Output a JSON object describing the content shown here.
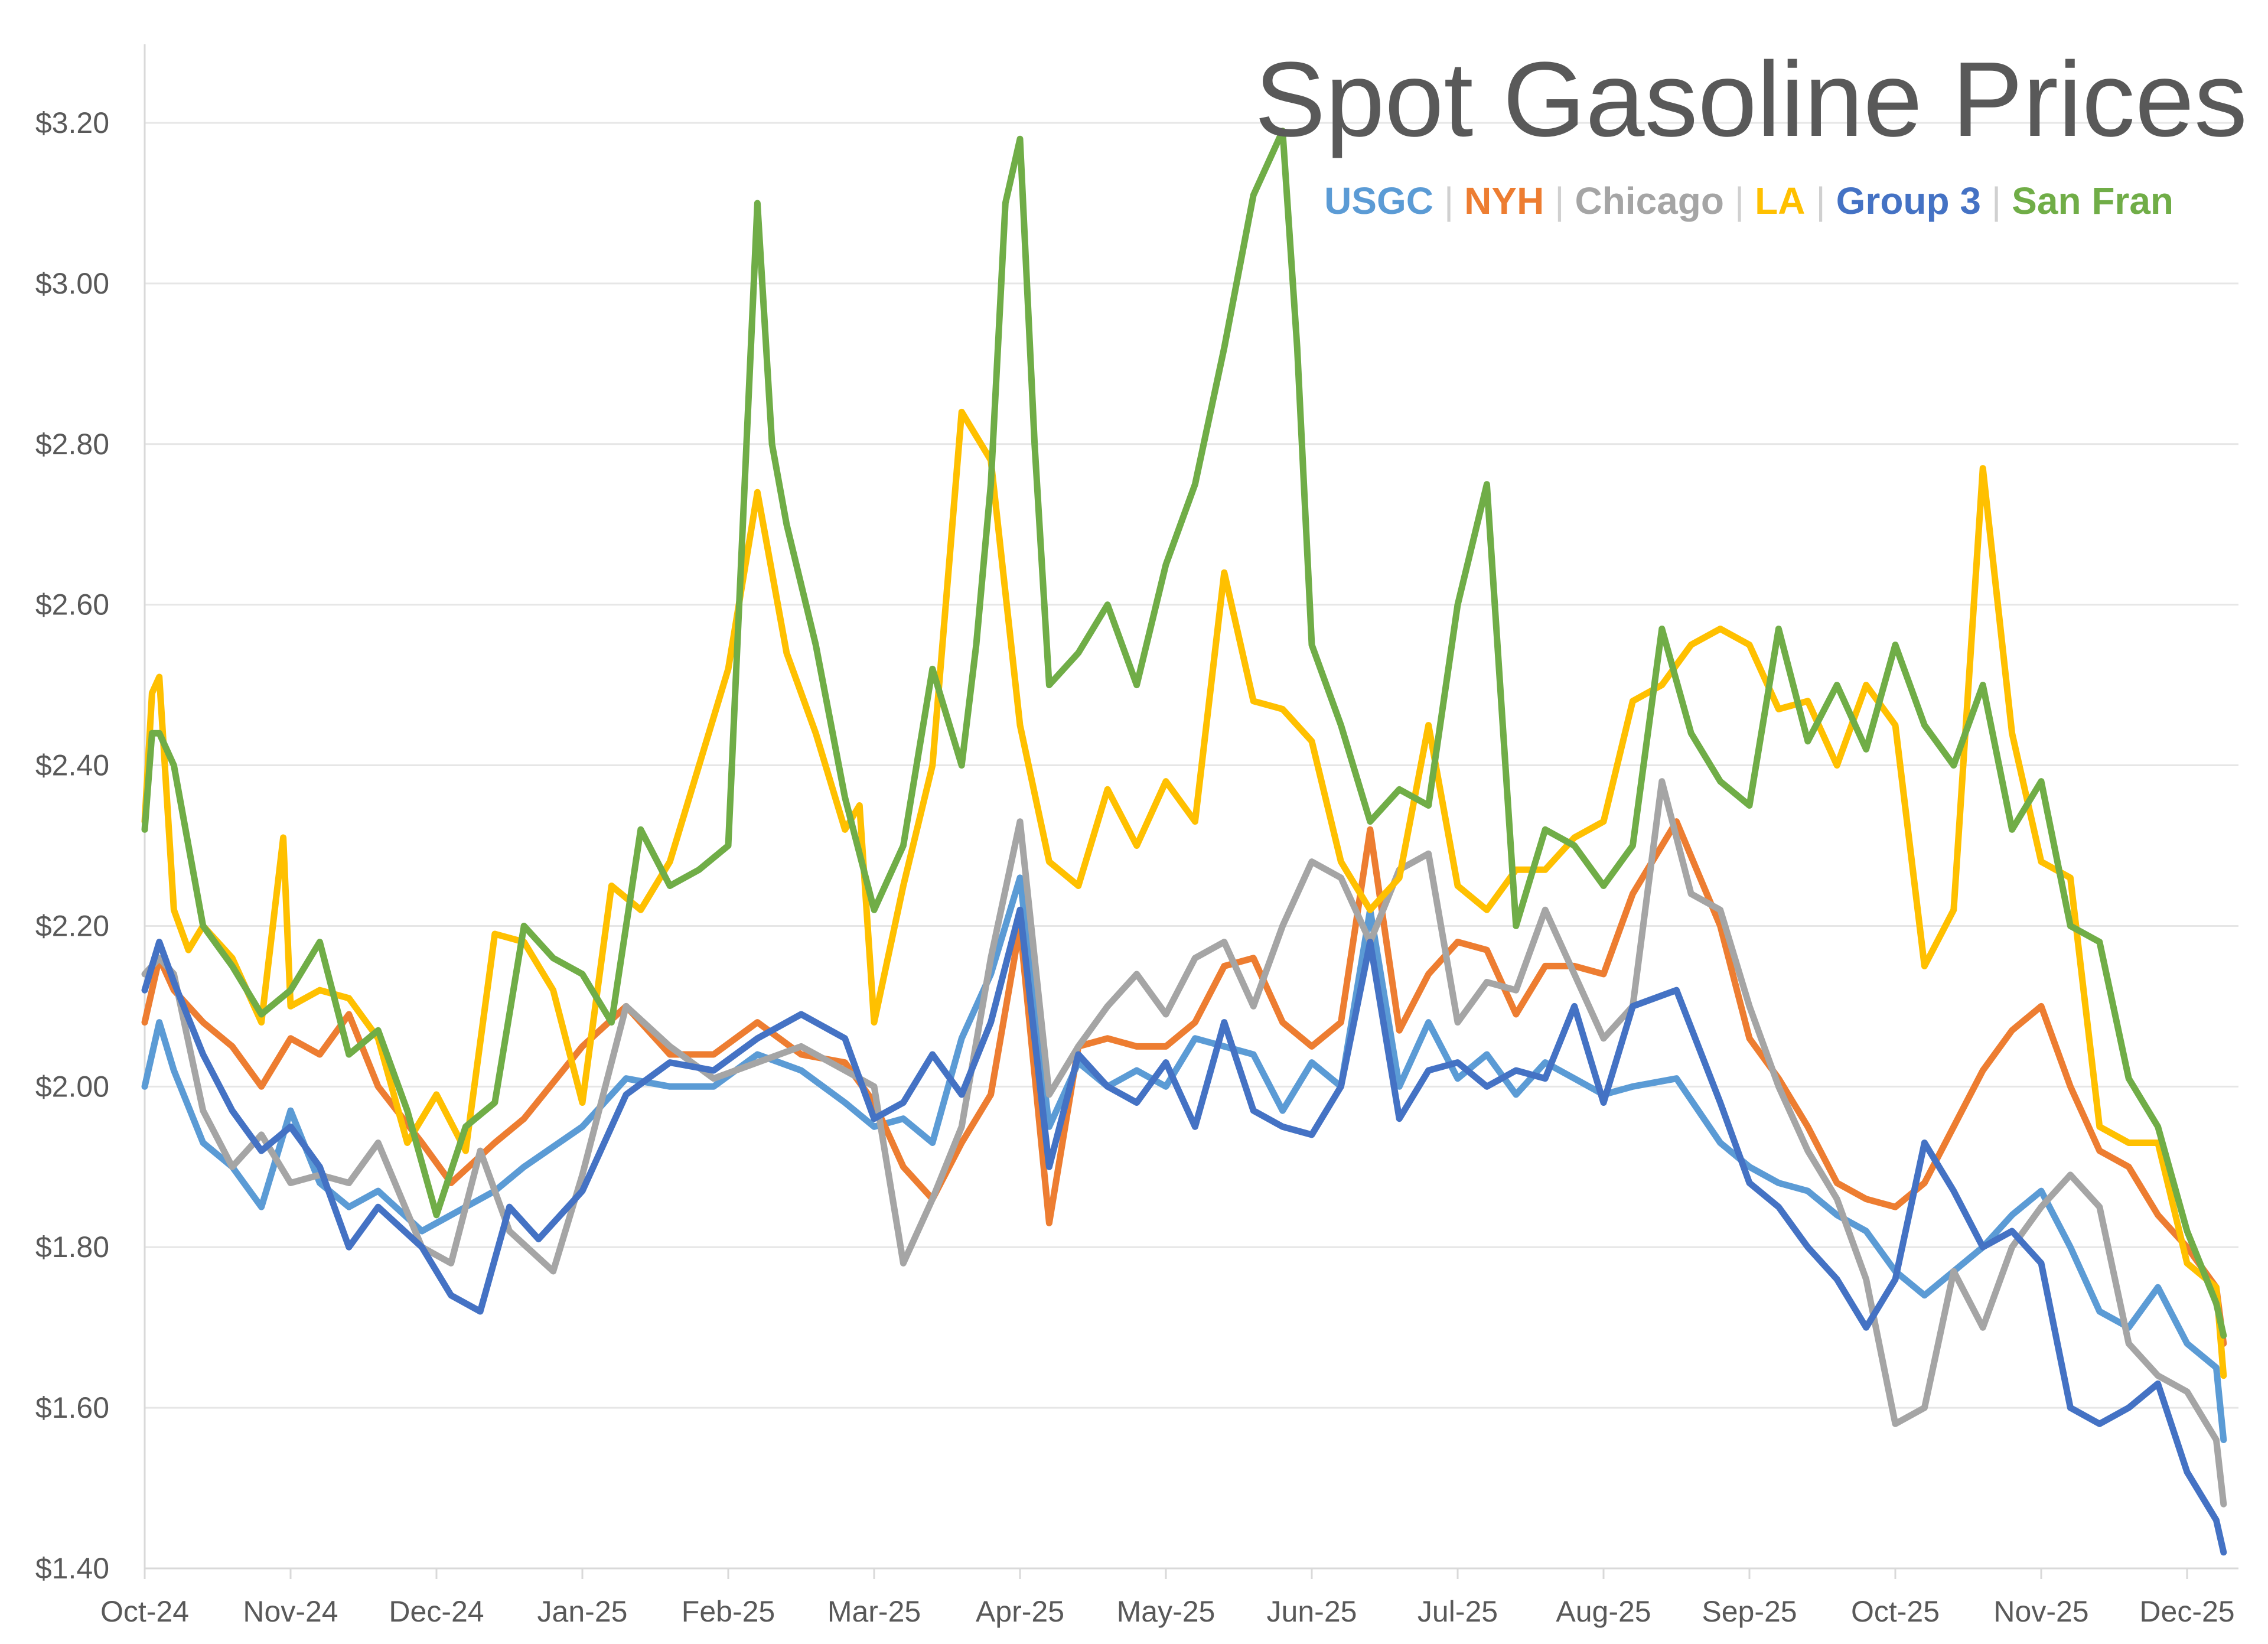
{
  "chart_data": {
    "type": "line",
    "title": "Spot Gasoline Prices",
    "xlabel": "",
    "ylabel": "",
    "ylim": [
      1.4,
      3.3
    ],
    "y_ticks": [
      "$1.40",
      "$1.60",
      "$1.80",
      "$2.00",
      "$2.20",
      "$2.40",
      "$2.60",
      "$2.80",
      "$3.00",
      "$3.20"
    ],
    "y_tick_values": [
      1.4,
      1.6,
      1.8,
      2.0,
      2.2,
      2.4,
      2.6,
      2.8,
      3.0,
      3.2
    ],
    "x_ticks": [
      "Oct-24",
      "Nov-24",
      "Dec-24",
      "Jan-25",
      "Feb-25",
      "Mar-25",
      "Apr-25",
      "May-25",
      "Jun-25",
      "Jul-25",
      "Aug-25",
      "Sep-25",
      "Oct-25",
      "Nov-25",
      "Dec-25"
    ],
    "xlim": [
      0,
      14.3
    ],
    "grid": true,
    "legend_position": "top-right",
    "series": [
      {
        "name": "USGC",
        "color": "#5B9BD5",
        "x": [
          0,
          0.1,
          0.2,
          0.4,
          0.6,
          0.8,
          1.0,
          1.2,
          1.4,
          1.6,
          1.9,
          2.1,
          2.4,
          2.6,
          3.0,
          3.3,
          3.6,
          3.9,
          4.2,
          4.5,
          4.8,
          5.0,
          5.2,
          5.4,
          5.6,
          5.8,
          6.0,
          6.2,
          6.4,
          6.6,
          6.8,
          7.0,
          7.2,
          7.4,
          7.6,
          7.8,
          8.0,
          8.2,
          8.4,
          8.6,
          8.8,
          9.0,
          9.2,
          9.4,
          9.6,
          9.8,
          10.0,
          10.2,
          10.5,
          10.8,
          11.0,
          11.2,
          11.4,
          11.6,
          11.8,
          12.0,
          12.2,
          12.4,
          12.6,
          12.8,
          13.0,
          13.2,
          13.4,
          13.6,
          13.8,
          14.0,
          14.2,
          14.25
        ],
        "values": [
          2.0,
          2.08,
          2.02,
          1.93,
          1.9,
          1.85,
          1.97,
          1.88,
          1.85,
          1.87,
          1.82,
          1.84,
          1.87,
          1.9,
          1.95,
          2.01,
          2.0,
          2.0,
          2.04,
          2.02,
          1.98,
          1.95,
          1.96,
          1.93,
          2.06,
          2.14,
          2.26,
          1.95,
          2.03,
          2.0,
          2.02,
          2.0,
          2.06,
          2.05,
          2.04,
          1.97,
          2.03,
          2.0,
          2.22,
          2.0,
          2.08,
          2.01,
          2.04,
          1.99,
          2.03,
          2.01,
          1.99,
          2.0,
          2.01,
          1.93,
          1.9,
          1.88,
          1.87,
          1.84,
          1.82,
          1.77,
          1.74,
          1.77,
          1.8,
          1.84,
          1.87,
          1.8,
          1.72,
          1.7,
          1.75,
          1.68,
          1.65,
          1.56
        ]
      },
      {
        "name": "NYH",
        "color": "#ED7D31",
        "x": [
          0,
          0.1,
          0.2,
          0.4,
          0.6,
          0.8,
          1.0,
          1.2,
          1.4,
          1.6,
          1.9,
          2.1,
          2.4,
          2.6,
          3.0,
          3.3,
          3.6,
          3.9,
          4.2,
          4.5,
          4.8,
          5.0,
          5.2,
          5.4,
          5.6,
          5.8,
          6.0,
          6.2,
          6.4,
          6.6,
          6.8,
          7.0,
          7.2,
          7.4,
          7.6,
          7.8,
          8.0,
          8.2,
          8.4,
          8.6,
          8.8,
          9.0,
          9.2,
          9.4,
          9.6,
          9.8,
          10.0,
          10.2,
          10.5,
          10.8,
          11.0,
          11.2,
          11.4,
          11.6,
          11.8,
          12.0,
          12.2,
          12.4,
          12.6,
          12.8,
          13.0,
          13.2,
          13.4,
          13.6,
          13.8,
          14.0,
          14.2,
          14.25
        ],
        "values": [
          2.08,
          2.16,
          2.12,
          2.08,
          2.05,
          2.0,
          2.06,
          2.04,
          2.09,
          2.0,
          1.93,
          1.88,
          1.93,
          1.96,
          2.05,
          2.1,
          2.04,
          2.04,
          2.08,
          2.04,
          2.03,
          1.98,
          1.9,
          1.86,
          1.93,
          1.99,
          2.2,
          1.83,
          2.05,
          2.06,
          2.05,
          2.05,
          2.08,
          2.15,
          2.16,
          2.08,
          2.05,
          2.08,
          2.32,
          2.07,
          2.14,
          2.18,
          2.17,
          2.09,
          2.15,
          2.15,
          2.14,
          2.24,
          2.33,
          2.2,
          2.06,
          2.01,
          1.95,
          1.88,
          1.86,
          1.85,
          1.88,
          1.95,
          2.02,
          2.07,
          2.1,
          2.0,
          1.92,
          1.9,
          1.84,
          1.8,
          1.75,
          1.68
        ]
      },
      {
        "name": "Chicago",
        "color": "#A5A5A5",
        "x": [
          0,
          0.1,
          0.2,
          0.4,
          0.6,
          0.8,
          1.0,
          1.2,
          1.4,
          1.6,
          1.9,
          2.1,
          2.3,
          2.5,
          2.8,
          3.0,
          3.3,
          3.6,
          3.9,
          4.2,
          4.5,
          4.8,
          5.0,
          5.2,
          5.4,
          5.6,
          5.8,
          6.0,
          6.2,
          6.4,
          6.6,
          6.8,
          7.0,
          7.2,
          7.4,
          7.6,
          7.8,
          8.0,
          8.2,
          8.4,
          8.6,
          8.8,
          9.0,
          9.2,
          9.4,
          9.6,
          9.8,
          10.0,
          10.2,
          10.4,
          10.6,
          10.8,
          11.0,
          11.2,
          11.4,
          11.6,
          11.8,
          12.0,
          12.2,
          12.4,
          12.6,
          12.8,
          13.0,
          13.2,
          13.4,
          13.6,
          13.8,
          14.0,
          14.2,
          14.25
        ],
        "values": [
          2.14,
          2.16,
          2.14,
          1.97,
          1.9,
          1.94,
          1.88,
          1.89,
          1.88,
          1.93,
          1.8,
          1.78,
          1.92,
          1.82,
          1.77,
          1.89,
          2.1,
          2.05,
          2.01,
          2.03,
          2.05,
          2.02,
          2.0,
          1.78,
          1.86,
          1.95,
          2.16,
          2.33,
          1.99,
          2.05,
          2.1,
          2.14,
          2.09,
          2.16,
          2.18,
          2.1,
          2.2,
          2.28,
          2.26,
          2.18,
          2.27,
          2.29,
          2.08,
          2.13,
          2.12,
          2.22,
          2.14,
          2.06,
          2.1,
          2.38,
          2.24,
          2.22,
          2.1,
          2.0,
          1.92,
          1.86,
          1.76,
          1.58,
          1.6,
          1.77,
          1.7,
          1.8,
          1.85,
          1.89,
          1.85,
          1.68,
          1.64,
          1.62,
          1.56,
          1.48
        ]
      },
      {
        "name": "LA",
        "color": "#FFC000",
        "x": [
          0,
          0.05,
          0.1,
          0.2,
          0.3,
          0.4,
          0.6,
          0.8,
          0.95,
          1.0,
          1.2,
          1.4,
          1.6,
          1.8,
          2.0,
          2.2,
          2.4,
          2.6,
          2.8,
          3.0,
          3.2,
          3.4,
          3.6,
          3.8,
          4.0,
          4.2,
          4.4,
          4.6,
          4.8,
          4.9,
          5.0,
          5.2,
          5.4,
          5.6,
          5.8,
          6.0,
          6.2,
          6.4,
          6.6,
          6.8,
          7.0,
          7.2,
          7.4,
          7.6,
          7.8,
          8.0,
          8.2,
          8.4,
          8.6,
          8.8,
          9.0,
          9.2,
          9.4,
          9.6,
          9.8,
          10.0,
          10.2,
          10.4,
          10.6,
          10.8,
          11.0,
          11.2,
          11.4,
          11.6,
          11.8,
          12.0,
          12.2,
          12.4,
          12.6,
          12.8,
          13.0,
          13.2,
          13.4,
          13.6,
          13.8,
          14.0,
          14.2,
          14.25
        ],
        "values": [
          2.33,
          2.49,
          2.51,
          2.22,
          2.17,
          2.2,
          2.16,
          2.08,
          2.31,
          2.1,
          2.12,
          2.11,
          2.06,
          1.93,
          1.99,
          1.92,
          2.19,
          2.18,
          2.12,
          1.98,
          2.25,
          2.22,
          2.28,
          2.4,
          2.52,
          2.74,
          2.54,
          2.44,
          2.32,
          2.35,
          2.08,
          2.25,
          2.4,
          2.84,
          2.78,
          2.45,
          2.28,
          2.25,
          2.37,
          2.3,
          2.38,
          2.33,
          2.64,
          2.48,
          2.47,
          2.43,
          2.28,
          2.22,
          2.26,
          2.45,
          2.25,
          2.22,
          2.27,
          2.27,
          2.31,
          2.33,
          2.48,
          2.5,
          2.55,
          2.57,
          2.55,
          2.47,
          2.48,
          2.4,
          2.5,
          2.45,
          2.15,
          2.22,
          2.77,
          2.44,
          2.28,
          2.26,
          1.95,
          1.93,
          1.93,
          1.78,
          1.75,
          1.64
        ]
      },
      {
        "name": "Group 3",
        "color": "#4472C4",
        "x": [
          0,
          0.1,
          0.2,
          0.4,
          0.6,
          0.8,
          1.0,
          1.2,
          1.4,
          1.6,
          1.9,
          2.1,
          2.3,
          2.5,
          2.7,
          3.0,
          3.3,
          3.6,
          3.9,
          4.2,
          4.5,
          4.8,
          5.0,
          5.2,
          5.4,
          5.6,
          5.8,
          6.0,
          6.2,
          6.4,
          6.6,
          6.8,
          7.0,
          7.2,
          7.4,
          7.6,
          7.8,
          8.0,
          8.2,
          8.4,
          8.6,
          8.8,
          9.0,
          9.2,
          9.4,
          9.6,
          9.8,
          10.0,
          10.2,
          10.5,
          10.8,
          11.0,
          11.2,
          11.4,
          11.6,
          11.8,
          12.0,
          12.2,
          12.4,
          12.6,
          12.8,
          13.0,
          13.2,
          13.4,
          13.6,
          13.8,
          14.0,
          14.2,
          14.25
        ],
        "values": [
          2.12,
          2.18,
          2.13,
          2.04,
          1.97,
          1.92,
          1.95,
          1.9,
          1.8,
          1.85,
          1.8,
          1.74,
          1.72,
          1.85,
          1.81,
          1.87,
          1.99,
          2.03,
          2.02,
          2.06,
          2.09,
          2.06,
          1.96,
          1.98,
          2.04,
          1.99,
          2.08,
          2.22,
          1.9,
          2.04,
          2.0,
          1.98,
          2.03,
          1.95,
          2.08,
          1.97,
          1.95,
          1.94,
          2.0,
          2.18,
          1.96,
          2.02,
          2.03,
          2.0,
          2.02,
          2.01,
          2.1,
          1.98,
          2.1,
          2.12,
          1.98,
          1.88,
          1.85,
          1.8,
          1.76,
          1.7,
          1.76,
          1.93,
          1.87,
          1.8,
          1.82,
          1.78,
          1.6,
          1.58,
          1.6,
          1.63,
          1.52,
          1.46,
          1.42
        ]
      },
      {
        "name": "San Fran",
        "color": "#70AD47",
        "x": [
          0,
          0.05,
          0.1,
          0.2,
          0.3,
          0.4,
          0.6,
          0.8,
          1.0,
          1.2,
          1.4,
          1.6,
          1.8,
          2.0,
          2.2,
          2.4,
          2.6,
          2.8,
          3.0,
          3.2,
          3.4,
          3.6,
          3.8,
          4.0,
          4.1,
          4.2,
          4.3,
          4.4,
          4.6,
          4.8,
          5.0,
          5.2,
          5.4,
          5.6,
          5.7,
          5.8,
          5.9,
          6.0,
          6.1,
          6.2,
          6.4,
          6.6,
          6.8,
          7.0,
          7.2,
          7.4,
          7.6,
          7.8,
          7.9,
          8.0,
          8.2,
          8.4,
          8.6,
          8.8,
          9.0,
          9.2,
          9.4,
          9.6,
          9.8,
          10.0,
          10.2,
          10.4,
          10.6,
          10.8,
          11.0,
          11.2,
          11.4,
          11.6,
          11.8,
          12.0,
          12.2,
          12.4,
          12.6,
          12.8,
          13.0,
          13.2,
          13.4,
          13.6,
          13.8,
          14.0,
          14.2,
          14.25
        ],
        "values": [
          2.32,
          2.44,
          2.44,
          2.4,
          2.3,
          2.2,
          2.15,
          2.09,
          2.12,
          2.18,
          2.04,
          2.07,
          1.97,
          1.84,
          1.95,
          1.98,
          2.2,
          2.16,
          2.14,
          2.08,
          2.32,
          2.25,
          2.27,
          2.3,
          2.7,
          3.1,
          2.8,
          2.7,
          2.55,
          2.36,
          2.22,
          2.3,
          2.52,
          2.4,
          2.55,
          2.75,
          3.1,
          3.18,
          2.8,
          2.5,
          2.54,
          2.6,
          2.5,
          2.65,
          2.75,
          2.92,
          3.11,
          3.19,
          2.92,
          2.55,
          2.45,
          2.33,
          2.37,
          2.35,
          2.6,
          2.75,
          2.2,
          2.32,
          2.3,
          2.25,
          2.3,
          2.57,
          2.44,
          2.38,
          2.35,
          2.57,
          2.43,
          2.5,
          2.42,
          2.55,
          2.45,
          2.4,
          2.5,
          2.32,
          2.38,
          2.2,
          2.18,
          2.01,
          1.95,
          1.82,
          1.73,
          1.69
        ]
      }
    ]
  }
}
